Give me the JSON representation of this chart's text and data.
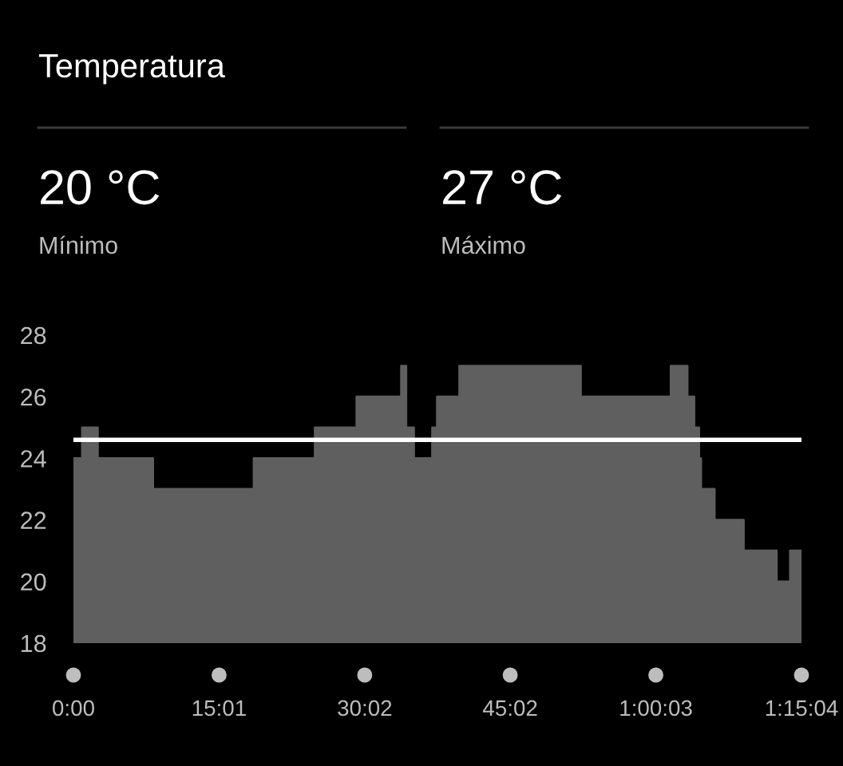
{
  "chart_data": {
    "type": "area",
    "title": "Temperatura",
    "annotations": [
      "20 °C",
      "Mínimo",
      "27 °C",
      "Máximo"
    ],
    "x": [
      0,
      0.9,
      0.9,
      2.5,
      2.5,
      8.2,
      8.2,
      18.6,
      18.6,
      24.9,
      24.9,
      29.2,
      29.2,
      33.8,
      33.8,
      34.3,
      34.3,
      35.1,
      35.1,
      37.0,
      37.0,
      37.5,
      37.5,
      39.8,
      39.8,
      52.3,
      52.3,
      61.6,
      61.6,
      63.3,
      63.3,
      64.0,
      64.0,
      64.5,
      64.5,
      64.7,
      64.7,
      66.1,
      66.1,
      69.1,
      69.1,
      72.5,
      72.5,
      73.9,
      73.9,
      75.067
    ],
    "series": [
      {
        "color": "#5f5f5f",
        "values": [
          24,
          24,
          25,
          25,
          24,
          24,
          23,
          23,
          24,
          24,
          25,
          25,
          26,
          26,
          27,
          27,
          25,
          25,
          24,
          24,
          25,
          25,
          26,
          26,
          27,
          27,
          26,
          26,
          27,
          27,
          26,
          26,
          25,
          25,
          24,
          24,
          23,
          23,
          22,
          22,
          21,
          21,
          20,
          20,
          21,
          21
        ]
      }
    ],
    "xlim": [
      0,
      75.067
    ],
    "xticks": [
      {
        "value": 0,
        "label": "0:00"
      },
      {
        "value": 15.017,
        "label": "15:01"
      },
      {
        "value": 30.033,
        "label": "30:02"
      },
      {
        "value": 45.033,
        "label": "45:02"
      },
      {
        "value": 60.05,
        "label": "1:00:03"
      },
      {
        "value": 75.067,
        "label": "1:15:04"
      }
    ],
    "ylim": [
      18,
      28
    ],
    "yticks": [
      18,
      20,
      22,
      24,
      26,
      28
    ],
    "ref_lines": [
      {
        "axis": "y",
        "value": 24.6,
        "color": "#ffffff"
      }
    ],
    "grid": false,
    "legend": false
  }
}
